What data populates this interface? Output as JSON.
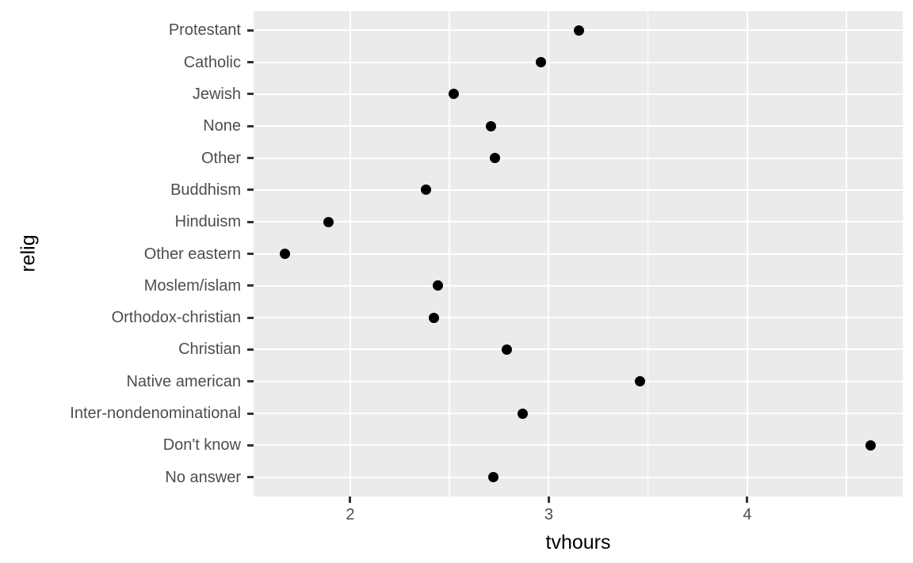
{
  "chart_data": {
    "type": "scatter",
    "title": "",
    "xlabel": "tvhours",
    "ylabel": "relig",
    "categories": [
      "Protestant",
      "Catholic",
      "Jewish",
      "None",
      "Other",
      "Buddhism",
      "Hinduism",
      "Other eastern",
      "Moslem/islam",
      "Orthodox-christian",
      "Christian",
      "Native american",
      "Inter-nondenominational",
      "Don't know",
      "No answer"
    ],
    "values": [
      3.15,
      2.96,
      2.52,
      2.71,
      2.73,
      2.38,
      1.89,
      1.67,
      2.44,
      2.42,
      2.79,
      3.46,
      2.87,
      4.62,
      2.72
    ],
    "x_ticks": [
      2,
      3,
      4
    ],
    "x_minor_ticks": [
      2.5,
      3.5,
      4.5
    ],
    "xlim": [
      1.513,
      4.783
    ],
    "grid": "on",
    "legend": "none",
    "colors": {
      "panel_background": "#EBEBEB",
      "gridline": "#FFFFFF",
      "point": "#000000",
      "axis_text": "#4D4D4D",
      "axis_title": "#000000",
      "tick_mark": "#333333",
      "figure_background": "#FFFFFF"
    }
  }
}
